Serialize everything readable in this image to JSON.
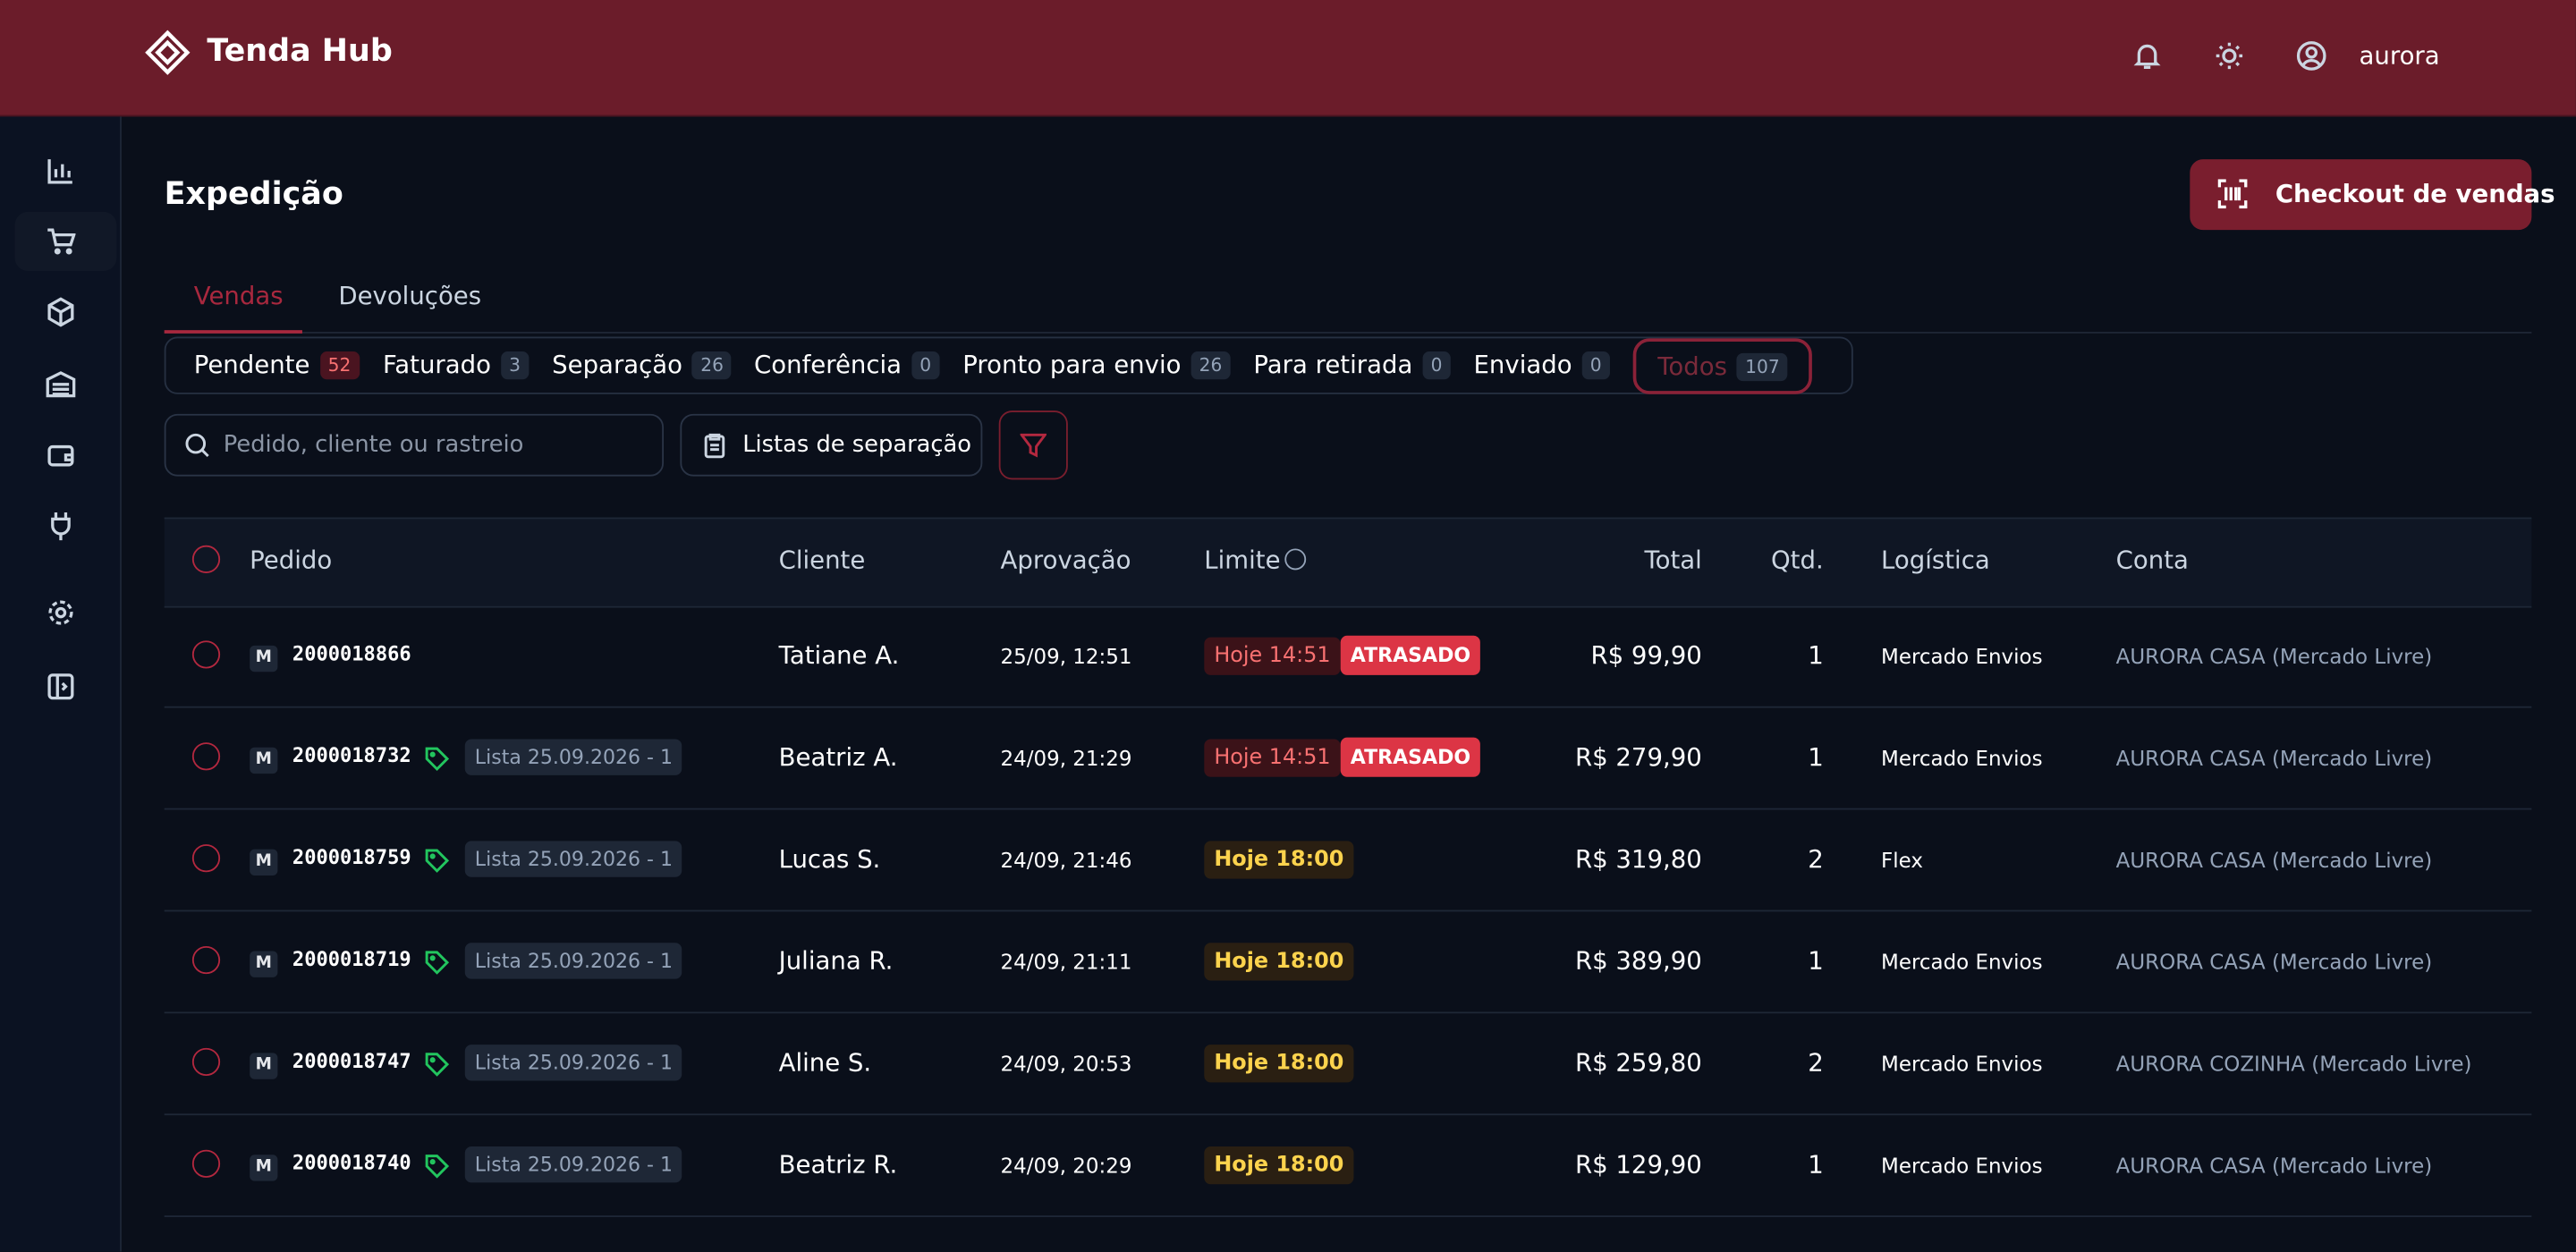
{
  "header": {
    "brand": "Tenda Hub",
    "user": "aurora"
  },
  "page": {
    "title": "Expedição",
    "checkout_button": "Checkout de vendas"
  },
  "tabs": [
    "Vendas",
    "Devoluções"
  ],
  "status_filters": [
    {
      "name": "Pendente",
      "count": 52
    },
    {
      "name": "Faturado",
      "count": 3
    },
    {
      "name": "Separação",
      "count": 26
    },
    {
      "name": "Conferência",
      "count": 0
    },
    {
      "name": "Pronto para envio",
      "count": 26
    },
    {
      "name": "Para retirada",
      "count": 0
    },
    {
      "name": "Enviado",
      "count": 0
    },
    {
      "name": "Todos",
      "count": 107
    }
  ],
  "search_placeholder": "Pedido, cliente ou rastreio",
  "lists_button": "Listas de separação",
  "table": {
    "headers": [
      "Pedido",
      "Cliente",
      "Aprovação",
      "Limite",
      "Total",
      "Qtd.",
      "Logística",
      "Conta"
    ],
    "rows": [
      {
        "marketplace": "M",
        "order": "2000018866",
        "list": null,
        "client": "Tatiane A.",
        "approval": "25/09, 12:51",
        "limit": "Hoje 14:51",
        "late": "ATRASADO",
        "total": "R$ 99,90",
        "qty": 1,
        "logistics": "Mercado Envios",
        "account": "AURORA CASA (Mercado Livre)"
      },
      {
        "marketplace": "M",
        "order": "2000018732",
        "list": "Lista 25.09.2026 - 1",
        "client": "Beatriz A.",
        "approval": "24/09, 21:29",
        "limit": "Hoje 14:51",
        "late": "ATRASADO",
        "total": "R$ 279,90",
        "qty": 1,
        "logistics": "Mercado Envios",
        "account": "AURORA CASA (Mercado Livre)"
      },
      {
        "marketplace": "M",
        "order": "2000018759",
        "list": "Lista 25.09.2026 - 1",
        "client": "Lucas S.",
        "approval": "24/09, 21:46",
        "limit": "Hoje 18:00",
        "late": null,
        "total": "R$ 319,80",
        "qty": 2,
        "logistics": "Flex",
        "account": "AURORA CASA (Mercado Livre)"
      },
      {
        "marketplace": "M",
        "order": "2000018719",
        "list": "Lista 25.09.2026 - 1",
        "client": "Juliana R.",
        "approval": "24/09, 21:11",
        "limit": "Hoje 18:00",
        "late": null,
        "total": "R$ 389,90",
        "qty": 1,
        "logistics": "Mercado Envios",
        "account": "AURORA CASA (Mercado Livre)"
      },
      {
        "marketplace": "M",
        "order": "2000018747",
        "list": "Lista 25.09.2026 - 1",
        "client": "Aline S.",
        "approval": "24/09, 20:53",
        "limit": "Hoje 18:00",
        "late": null,
        "total": "R$ 259,80",
        "qty": 2,
        "logistics": "Mercado Envios",
        "account": "AURORA COZINHA (Mercado Livre)"
      },
      {
        "marketplace": "M",
        "order": "2000018740",
        "list": "Lista 25.09.2026 - 1",
        "client": "Beatriz R.",
        "approval": "24/09, 20:29",
        "limit": "Hoje 18:00",
        "late": null,
        "total": "R$ 129,90",
        "qty": 1,
        "logistics": "Mercado Envios",
        "account": "AURORA CASA (Mercado Livre)"
      }
    ]
  }
}
